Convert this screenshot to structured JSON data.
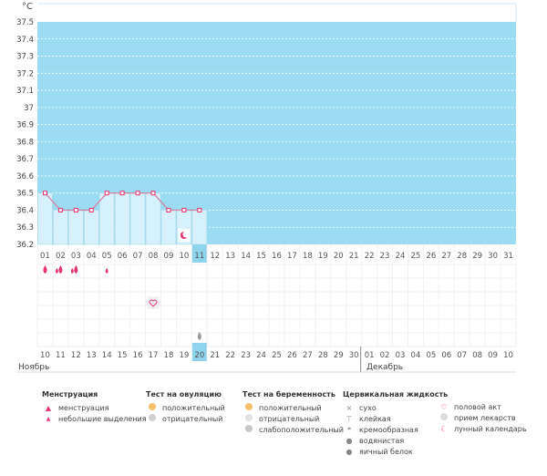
{
  "chart_data": {
    "type": "line",
    "unit": "°C",
    "ylim": [
      36.2,
      37.5
    ],
    "yticks": [
      "37.5",
      "37.4",
      "37.3",
      "37.2",
      "37.1",
      "37",
      "36.9",
      "36.8",
      "36.7",
      "36.6",
      "36.5",
      "36.4",
      "36.3",
      "36.2"
    ],
    "cycle_days": [
      "01",
      "02",
      "03",
      "04",
      "05",
      "06",
      "07",
      "08",
      "09",
      "10",
      "11",
      "12",
      "13",
      "14",
      "15",
      "16",
      "17",
      "18",
      "19",
      "20",
      "21",
      "22",
      "23",
      "24",
      "25",
      "26",
      "27",
      "28",
      "29",
      "30",
      "31"
    ],
    "calendar_dates": [
      "10",
      "11",
      "12",
      "13",
      "14",
      "15",
      "16",
      "17",
      "18",
      "19",
      "20",
      "21",
      "22",
      "23",
      "24",
      "25",
      "26",
      "27",
      "28",
      "29",
      "30",
      "01",
      "02",
      "03",
      "04",
      "05",
      "06",
      "07",
      "08",
      "09",
      "10"
    ],
    "highlighted_dates": [
      "10",
      "11",
      "17",
      "18",
      "24",
      "25",
      "01",
      "02",
      "08",
      "09"
    ],
    "current_day_index": 10,
    "temperatures": [
      36.5,
      36.4,
      36.4,
      36.4,
      36.5,
      36.5,
      36.5,
      36.5,
      36.4,
      36.4,
      36.4
    ],
    "months": {
      "first": "Ноябрь",
      "second": "Декабрь"
    },
    "markers": {
      "menstruation_days": [
        0,
        1,
        2
      ],
      "small_discharge_days": [
        4
      ],
      "intercourse_days": [
        7
      ],
      "moon_calendar_days": [
        9
      ],
      "fluid_egg_white_days": [
        10
      ]
    }
  },
  "legend": {
    "menstruation": {
      "title": "Менструация",
      "items": [
        "менструация",
        "небольшие выделения"
      ]
    },
    "ovulation_test": {
      "title": "Тест на овуляцию",
      "items": [
        "положительный",
        "отрицательный"
      ]
    },
    "pregnancy_test": {
      "title": "Тест на беременность",
      "items": [
        "положительный",
        "отрицательный",
        "слабоположительный"
      ]
    },
    "cervical_fluid": {
      "title": "Цервикальная жидкость",
      "items": [
        "сухо",
        "клейкая",
        "кремообразная",
        "водянистая",
        "яичный белок"
      ]
    },
    "other": {
      "items": [
        "половой акт",
        "прием лекарств",
        "лунный календарь"
      ]
    }
  },
  "colors": {
    "chart_bg": "#9bdcf2",
    "bar_fill": "#d6f1fb",
    "line": "#d08aa8",
    "accent": "#e8346b",
    "today": "#8fd3ec"
  }
}
